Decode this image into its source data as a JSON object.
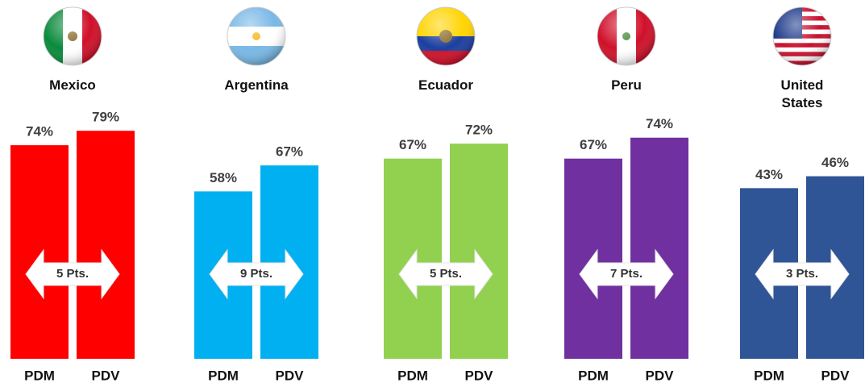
{
  "chart_data": [
    {
      "type": "bar",
      "title": "Mexico",
      "categories": [
        "PDM",
        "PDV"
      ],
      "values": [
        74,
        79
      ],
      "value_labels": [
        "74%",
        "79%"
      ],
      "annotation": "5 Pts.",
      "color": "#ff0000",
      "ylim": [
        0,
        88
      ]
    },
    {
      "type": "bar",
      "title": "Argentina",
      "categories": [
        "PDM",
        "PDV"
      ],
      "values": [
        58,
        67
      ],
      "value_labels": [
        "58%",
        "67%"
      ],
      "annotation": "9 Pts.",
      "color": "#00b0f0",
      "ylim": [
        0,
        88
      ]
    },
    {
      "type": "bar",
      "title": "Ecuador",
      "categories": [
        "PDM",
        "PDV"
      ],
      "values": [
        67,
        72
      ],
      "value_labels": [
        "67%",
        "72%"
      ],
      "annotation": "5 Pts.",
      "color": "#92d050",
      "ylim": [
        0,
        85
      ]
    },
    {
      "type": "bar",
      "title": "Peru",
      "categories": [
        "PDM",
        "PDV"
      ],
      "values": [
        67,
        74
      ],
      "value_labels": [
        "67%",
        "74%"
      ],
      "annotation": "7 Pts.",
      "color": "#7030a0",
      "ylim": [
        0,
        85
      ]
    },
    {
      "type": "bar",
      "title": "United States",
      "categories": [
        "PDM",
        "PDV"
      ],
      "values": [
        43,
        46
      ],
      "value_labels": [
        "43%",
        "46%"
      ],
      "annotation": "3 Pts.",
      "color": "#2f5597",
      "ylim": [
        0,
        64
      ]
    }
  ]
}
